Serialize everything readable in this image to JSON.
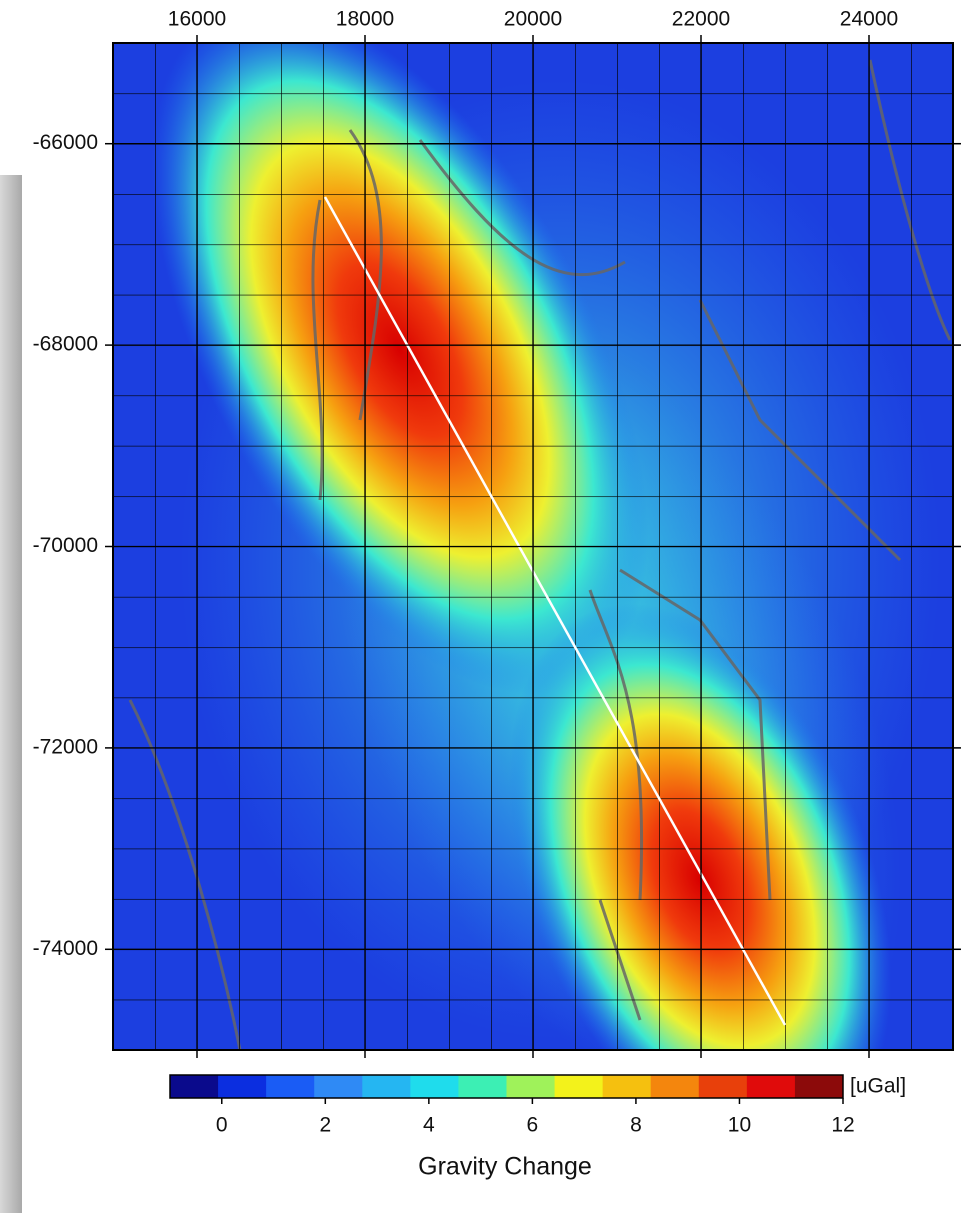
{
  "chart_data": {
    "type": "heatmap",
    "xlim": [
      15000,
      25000
    ],
    "xticks": [
      16000,
      18000,
      20000,
      22000,
      24000
    ],
    "ylim": [
      -75000,
      -65000
    ],
    "yticks": [
      -74000,
      -72000,
      -70000,
      -68000,
      -66000
    ],
    "grid": true,
    "colorbar": {
      "clim": [
        -1,
        12
      ],
      "ticks": [
        0,
        2,
        4,
        6,
        8,
        10,
        12
      ],
      "colors": [
        "#0a0a8c",
        "#0b2ee0",
        "#1a5cf5",
        "#2f8af5",
        "#25b6f2",
        "#1fdcec",
        "#3cefb4",
        "#9ff25a",
        "#f3f21b",
        "#f5c00f",
        "#f4860d",
        "#e8400b",
        "#e00b0b",
        "#8c0a0a"
      ],
      "unit": "[uGal]",
      "label": "Gravity Change"
    }
  }
}
